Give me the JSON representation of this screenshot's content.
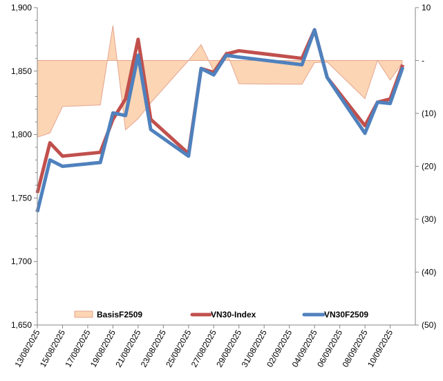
{
  "chart_data": {
    "type": "line",
    "title": "",
    "x_axis": {
      "type": "date",
      "range": [
        "2025-08-13",
        "2025-09-12"
      ],
      "tick_labels": [
        "13/08/2025",
        "15/08/2025",
        "17/08/2025",
        "19/08/2025",
        "21/08/2025",
        "23/08/2025",
        "25/08/2025",
        "27/08/2025",
        "29/08/2025",
        "31/08/2025",
        "02/09/2025",
        "04/09/2025",
        "06/09/2025",
        "08/09/2025",
        "10/09/2025"
      ]
    },
    "y_axis_left": {
      "range": [
        1650,
        1900
      ],
      "tick_labels": [
        "1,650",
        "1,700",
        "1,750",
        "1,800",
        "1,850",
        "1,900"
      ],
      "ticks": [
        1650,
        1700,
        1750,
        1800,
        1850,
        1900
      ]
    },
    "y_axis_right": {
      "range": [
        -50,
        10
      ],
      "tick_labels": [
        "(50)",
        "(40)",
        "(30)",
        "(20)",
        "(10)",
        "-",
        "10"
      ],
      "ticks": [
        -50,
        -40,
        -30,
        -20,
        -10,
        0,
        10
      ]
    },
    "legend_position": "bottom-inside",
    "grid": false,
    "dates": [
      "2025-08-13",
      "2025-08-14",
      "2025-08-15",
      "2025-08-18",
      "2025-08-19",
      "2025-08-20",
      "2025-08-21",
      "2025-08-22",
      "2025-08-25",
      "2025-08-26",
      "2025-08-27",
      "2025-08-28",
      "2025-08-29",
      "2025-09-03",
      "2025-09-04",
      "2025-09-05",
      "2025-09-08",
      "2025-09-09",
      "2025-09-10",
      "2025-09-11"
    ],
    "series": [
      {
        "name": "BasisF2509",
        "type": "area",
        "axis": "right",
        "color": "#FCD5B4",
        "stroke": "#E3A48E",
        "values": [
          -14.5,
          -13.7,
          -8.7,
          -8.4,
          6.6,
          -13.1,
          -11,
          -8,
          0,
          3,
          -2,
          1.7,
          -4.4,
          -4.5,
          -0.4,
          -0.3,
          -7.2,
          0,
          -3.7,
          -0.3
        ]
      },
      {
        "name": "VN30-Index",
        "type": "line",
        "axis": "left",
        "color": "#C0504D",
        "values": [
          1754,
          1793.5,
          1783,
          1786,
          1812,
          1828,
          1875,
          1812,
          1785,
          1852,
          1849,
          1863.5,
          1866,
          1860,
          1882.5,
          1845,
          1807,
          1825.5,
          1828,
          1855
        ]
      },
      {
        "name": "VN30F2509",
        "type": "line",
        "axis": "left",
        "color": "#4F81BD",
        "values": [
          1739,
          1780,
          1775,
          1778,
          1817,
          1815,
          1862.5,
          1804,
          1783,
          1852,
          1847,
          1862.5,
          1861,
          1855,
          1882.5,
          1845,
          1801,
          1825.5,
          1824.5,
          1853
        ]
      }
    ]
  }
}
